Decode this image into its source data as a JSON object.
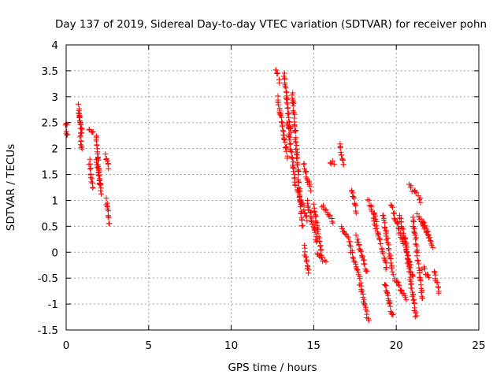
{
  "chart_data": {
    "type": "scatter",
    "title": "Day 137 of 2019, Sidereal Day-to-day VTEC variation (SDTVAR) for receiver pohn",
    "xlabel": "GPS time / hours",
    "ylabel": "SDTVAR / TECUs",
    "xlim": [
      0,
      25
    ],
    "ylim": [
      -1.5,
      4
    ],
    "x_ticks": [
      0,
      5,
      10,
      15,
      20,
      25
    ],
    "y_ticks": [
      -1.5,
      -1,
      -0.5,
      0,
      0.5,
      1,
      1.5,
      2,
      2.5,
      3,
      3.5,
      4
    ],
    "x_tick_labels": [
      "0",
      "5",
      "10",
      "15",
      "20",
      "25"
    ],
    "y_tick_labels": [
      "-1.5",
      "-1",
      "-0.5",
      "0",
      "0.5",
      "1",
      "1.5",
      "2",
      "2.5",
      "3",
      "3.5",
      "4"
    ],
    "grid": true,
    "marker": "+",
    "color": "#ff0000",
    "series": [
      {
        "name": "SDTVAR",
        "segments": [
          {
            "x": [
              0.0,
              0.05,
              0.1
            ],
            "y": [
              2.5,
              2.25,
              2.05
            ]
          },
          {
            "x": [
              0.75,
              0.95
            ],
            "y": [
              2.85,
              1.95
            ]
          },
          {
            "x": [
              0.75,
              0.95
            ],
            "y": [
              2.7,
              2.3
            ]
          },
          {
            "x": [
              1.4,
              1.6
            ],
            "y": [
              2.4,
              2.3
            ]
          },
          {
            "x": [
              1.4,
              1.6
            ],
            "y": [
              1.75,
              1.25
            ]
          },
          {
            "x": [
              1.8,
              2.1
            ],
            "y": [
              2.25,
              1.15
            ]
          },
          {
            "x": [
              1.8,
              2.1
            ],
            "y": [
              1.8,
              1.3
            ]
          },
          {
            "x": [
              2.4,
              2.6
            ],
            "y": [
              1.85,
              1.65
            ]
          },
          {
            "x": [
              2.45,
              2.6
            ],
            "y": [
              1.0,
              0.55
            ]
          },
          {
            "x": [
              12.7,
              12.95
            ],
            "y": [
              3.55,
              3.3
            ]
          },
          {
            "x": [
              12.8,
              13.4
            ],
            "y": [
              3.0,
              1.85
            ]
          },
          {
            "x": [
              13.2,
              13.6
            ],
            "y": [
              3.45,
              2.3
            ]
          },
          {
            "x": [
              13.4,
              13.9
            ],
            "y": [
              2.5,
              1.3
            ]
          },
          {
            "x": [
              13.7,
              14.3
            ],
            "y": [
              3.1,
              0.5
            ]
          },
          {
            "x": [
              14.0,
              14.6
            ],
            "y": [
              1.2,
              0.65
            ]
          },
          {
            "x": [
              14.4,
              14.8
            ],
            "y": [
              1.7,
              1.2
            ]
          },
          {
            "x": [
              14.4,
              14.7
            ],
            "y": [
              0.1,
              -0.4
            ]
          },
          {
            "x": [
              14.6,
              15.2
            ],
            "y": [
              1.0,
              0.2
            ]
          },
          {
            "x": [
              15.0,
              15.5
            ],
            "y": [
              0.9,
              -0.1
            ]
          },
          {
            "x": [
              15.2,
              15.7
            ],
            "y": [
              0.0,
              -0.2
            ]
          },
          {
            "x": [
              15.5,
              16.2
            ],
            "y": [
              0.9,
              0.6
            ]
          },
          {
            "x": [
              16.0,
              16.2
            ],
            "y": [
              1.75,
              1.7
            ]
          },
          {
            "x": [
              16.6,
              16.8
            ],
            "y": [
              2.1,
              1.65
            ]
          },
          {
            "x": [
              16.7,
              17.2
            ],
            "y": [
              0.5,
              0.2
            ]
          },
          {
            "x": [
              17.3,
              17.6
            ],
            "y": [
              1.2,
              0.8
            ]
          },
          {
            "x": [
              17.2,
              17.8
            ],
            "y": [
              0.1,
              -0.5
            ]
          },
          {
            "x": [
              17.6,
              18.2
            ],
            "y": [
              0.3,
              -0.4
            ]
          },
          {
            "x": [
              17.8,
              18.3
            ],
            "y": [
              -0.6,
              -1.3
            ]
          },
          {
            "x": [
              18.3,
              18.8
            ],
            "y": [
              1.0,
              0.6
            ]
          },
          {
            "x": [
              18.6,
              19.4
            ],
            "y": [
              0.7,
              -0.3
            ]
          },
          {
            "x": [
              19.2,
              19.8
            ],
            "y": [
              0.7,
              -0.4
            ]
          },
          {
            "x": [
              19.3,
              19.8
            ],
            "y": [
              -0.6,
              -1.25
            ]
          },
          {
            "x": [
              19.7,
              20.4
            ],
            "y": [
              0.9,
              0.2
            ]
          },
          {
            "x": [
              19.9,
              20.6
            ],
            "y": [
              -0.5,
              -0.9
            ]
          },
          {
            "x": [
              20.2,
              21.0
            ],
            "y": [
              0.7,
              -0.5
            ]
          },
          {
            "x": [
              20.5,
              21.2
            ],
            "y": [
              0.3,
              -1.25
            ]
          },
          {
            "x": [
              20.8,
              21.5
            ],
            "y": [
              1.3,
              1.0
            ]
          },
          {
            "x": [
              21.0,
              21.6
            ],
            "y": [
              0.7,
              -0.9
            ]
          },
          {
            "x": [
              21.3,
              22.0
            ],
            "y": [
              0.75,
              0.3
            ]
          },
          {
            "x": [
              21.6,
              22.2
            ],
            "y": [
              0.6,
              0.1
            ]
          },
          {
            "x": [
              21.6,
              22.0
            ],
            "y": [
              -0.3,
              -0.5
            ]
          },
          {
            "x": [
              22.3,
              22.6
            ],
            "y": [
              -0.4,
              -0.75
            ]
          }
        ]
      }
    ]
  }
}
